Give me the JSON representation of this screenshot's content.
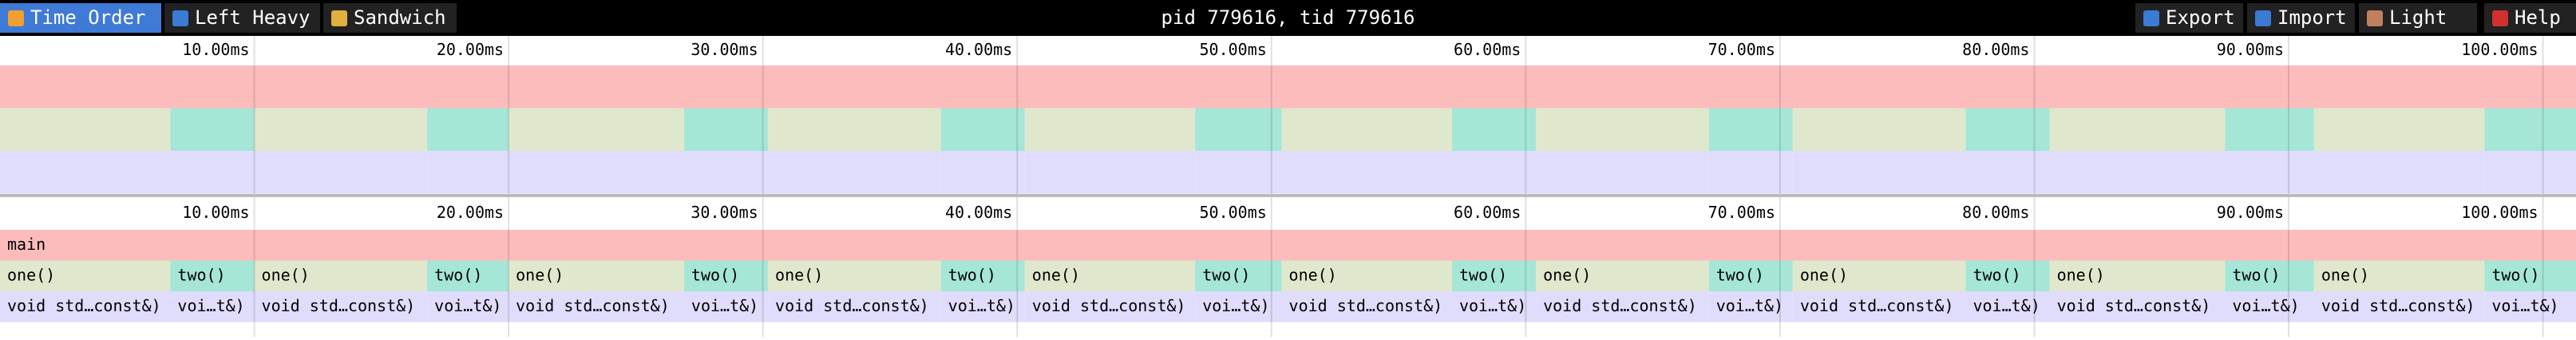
{
  "toolbar": {
    "left": [
      "Time Order",
      "Left Heavy",
      "Sandwich"
    ],
    "title": "pid 779616, tid 779616",
    "right": [
      "Export",
      "Import",
      "Light",
      "Help"
    ]
  },
  "flame": {
    "xlim": [
      0,
      101.3
    ],
    "xticks": [
      {
        "value": 10,
        "label": "10.00ms"
      },
      {
        "value": 20,
        "label": "20.00ms"
      },
      {
        "value": 30,
        "label": "30.00ms"
      },
      {
        "value": 40,
        "label": "40.00ms"
      },
      {
        "value": 50,
        "label": "50.00ms"
      },
      {
        "value": 60,
        "label": "60.00ms"
      },
      {
        "value": 70,
        "label": "70.00ms"
      },
      {
        "value": 80,
        "label": "80.00ms"
      },
      {
        "value": 90,
        "label": "90.00ms"
      },
      {
        "value": 100,
        "label": "100.00ms"
      }
    ],
    "levels": [
      [
        {
          "name": "main",
          "start": 0,
          "end": 101.3,
          "color": "#fdbcbc"
        }
      ],
      [
        {
          "name": "one()",
          "start": 0,
          "end": 6.7,
          "color": "#dfe8cc"
        },
        {
          "name": "two()",
          "start": 6.7,
          "end": 10.0,
          "color": "#a5e6d6"
        },
        {
          "name": "one()",
          "start": 10.0,
          "end": 16.8,
          "color": "#dfe8cc"
        },
        {
          "name": "two()",
          "start": 16.8,
          "end": 20.0,
          "color": "#a5e6d6"
        },
        {
          "name": "one()",
          "start": 20.0,
          "end": 26.9,
          "color": "#dfe8cc"
        },
        {
          "name": "two()",
          "start": 26.9,
          "end": 30.2,
          "color": "#a5e6d6"
        },
        {
          "name": "one()",
          "start": 30.2,
          "end": 37.0,
          "color": "#dfe8cc"
        },
        {
          "name": "two()",
          "start": 37.0,
          "end": 40.3,
          "color": "#a5e6d6"
        },
        {
          "name": "one()",
          "start": 40.3,
          "end": 47.0,
          "color": "#dfe8cc"
        },
        {
          "name": "two()",
          "start": 47.0,
          "end": 50.4,
          "color": "#a5e6d6"
        },
        {
          "name": "one()",
          "start": 50.4,
          "end": 57.1,
          "color": "#dfe8cc"
        },
        {
          "name": "two()",
          "start": 57.1,
          "end": 60.4,
          "color": "#a5e6d6"
        },
        {
          "name": "one()",
          "start": 60.4,
          "end": 67.2,
          "color": "#dfe8cc"
        },
        {
          "name": "two()",
          "start": 67.2,
          "end": 70.5,
          "color": "#a5e6d6"
        },
        {
          "name": "one()",
          "start": 70.5,
          "end": 77.3,
          "color": "#dfe8cc"
        },
        {
          "name": "two()",
          "start": 77.3,
          "end": 80.6,
          "color": "#a5e6d6"
        },
        {
          "name": "one()",
          "start": 80.6,
          "end": 87.5,
          "color": "#dfe8cc"
        },
        {
          "name": "two()",
          "start": 87.5,
          "end": 91.0,
          "color": "#a5e6d6"
        },
        {
          "name": "one()",
          "start": 91.0,
          "end": 97.7,
          "color": "#dfe8cc"
        },
        {
          "name": "two()",
          "start": 97.7,
          "end": 101.3,
          "color": "#a5e6d6"
        }
      ],
      [
        {
          "name": "void std…const&)",
          "start": 0,
          "end": 6.7,
          "color": "#e0dcfc"
        },
        {
          "name": "voi…t&)",
          "start": 6.7,
          "end": 10.0,
          "color": "#e0dcfc"
        },
        {
          "name": "void std…const&)",
          "start": 10.0,
          "end": 16.8,
          "color": "#e0dcfc"
        },
        {
          "name": "voi…t&)",
          "start": 16.8,
          "end": 20.0,
          "color": "#e0dcfc"
        },
        {
          "name": "void std…const&)",
          "start": 20.0,
          "end": 26.9,
          "color": "#e0dcfc"
        },
        {
          "name": "voi…t&)",
          "start": 26.9,
          "end": 30.2,
          "color": "#e0dcfc"
        },
        {
          "name": "void std…const&)",
          "start": 30.2,
          "end": 37.0,
          "color": "#e0dcfc"
        },
        {
          "name": "voi…t&)",
          "start": 37.0,
          "end": 40.3,
          "color": "#e0dcfc"
        },
        {
          "name": "void std…const&)",
          "start": 40.3,
          "end": 47.0,
          "color": "#e0dcfc"
        },
        {
          "name": "voi…t&)",
          "start": 47.0,
          "end": 50.4,
          "color": "#e0dcfc"
        },
        {
          "name": "void std…const&)",
          "start": 50.4,
          "end": 57.1,
          "color": "#e0dcfc"
        },
        {
          "name": "voi…t&)",
          "start": 57.1,
          "end": 60.4,
          "color": "#e0dcfc"
        },
        {
          "name": "void std…const&)",
          "start": 60.4,
          "end": 67.2,
          "color": "#e0dcfc"
        },
        {
          "name": "voi…t&)",
          "start": 67.2,
          "end": 70.5,
          "color": "#e0dcfc"
        },
        {
          "name": "void std…const&)",
          "start": 70.5,
          "end": 77.3,
          "color": "#e0dcfc"
        },
        {
          "name": "voi…t&)",
          "start": 77.3,
          "end": 80.6,
          "color": "#e0dcfc"
        },
        {
          "name": "void std…const&)",
          "start": 80.6,
          "end": 87.5,
          "color": "#e0dcfc"
        },
        {
          "name": "voi…t&)",
          "start": 87.5,
          "end": 91.0,
          "color": "#e0dcfc"
        },
        {
          "name": "void std…const&)",
          "start": 91.0,
          "end": 97.7,
          "color": "#e0dcfc"
        },
        {
          "name": "voi…t&)",
          "start": 97.7,
          "end": 101.3,
          "color": "#e0dcfc"
        }
      ]
    ]
  }
}
